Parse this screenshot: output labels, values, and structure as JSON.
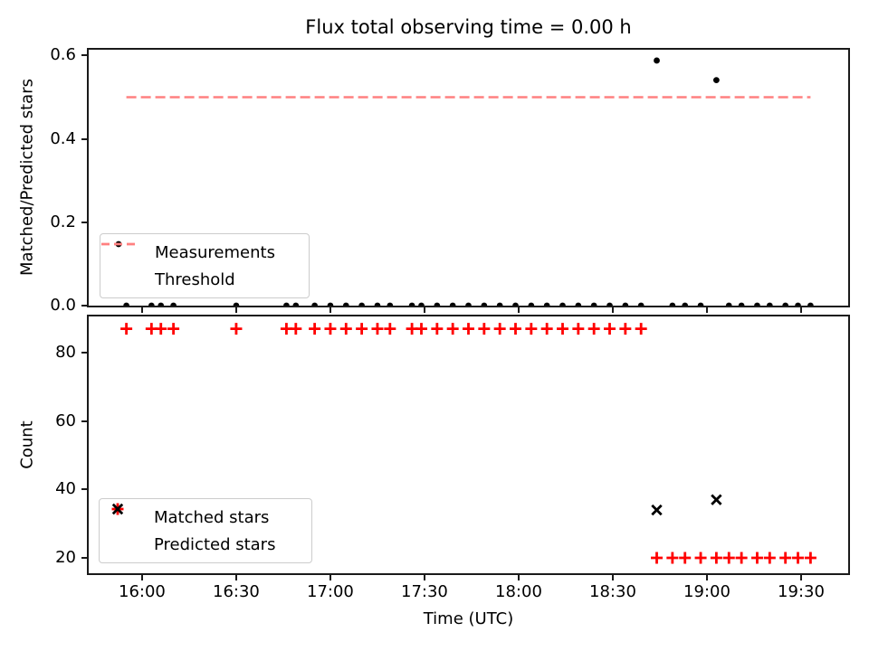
{
  "figure": {
    "title": "Flux total observing time = 0.00 h",
    "background_color": "#ffffff"
  },
  "colors": {
    "measurements": "#000000",
    "threshold": "#ff8080",
    "matched_stars": "#ff0000",
    "predicted_stars": "#000000",
    "axis": "#1a1a1a"
  },
  "chart_data": [
    {
      "type": "scatter",
      "title": "Flux total observing time = 0.00 h",
      "ylabel": "Matched/Predicted stars",
      "ylim": [
        0,
        0.6139
      ],
      "yticks": [
        0,
        0.2,
        0.4,
        0.6
      ],
      "ytick_labels": [
        "0.0",
        "0.2",
        "0.4",
        "0.6"
      ],
      "grid": false,
      "legend_position": "lower left",
      "x_axis": {
        "xlim_minutes_after_1600": [
          -17,
          225
        ],
        "tick_minutes": [
          0,
          30,
          60,
          90,
          120,
          150,
          180,
          210
        ],
        "tick_labels": [
          "16:00",
          "16:30",
          "17:00",
          "17:30",
          "18:00",
          "18:30",
          "19:00",
          "19:30"
        ],
        "show_tick_labels": false
      },
      "series": [
        {
          "name": "Measurements",
          "marker": "dot",
          "color": "#000000",
          "x_minutes": [
            -5,
            3,
            6,
            10,
            30,
            46,
            49,
            55,
            60,
            65,
            70,
            75,
            79,
            86,
            89,
            94,
            99,
            104,
            109,
            114,
            119,
            124,
            129,
            134,
            139,
            144,
            149,
            154,
            159,
            164,
            169,
            173,
            178,
            183,
            187,
            191,
            196,
            200,
            205,
            209,
            213
          ],
          "y": [
            0,
            0,
            0,
            0,
            0,
            0,
            0,
            0,
            0,
            0,
            0,
            0,
            0,
            0,
            0,
            0,
            0,
            0,
            0,
            0,
            0,
            0,
            0,
            0,
            0,
            0,
            0,
            0,
            0,
            0.588,
            0,
            0,
            0,
            0.541,
            0,
            0,
            0,
            0,
            0,
            0,
            0
          ]
        },
        {
          "name": "Threshold",
          "marker": "dashed-line",
          "color": "#ff8080",
          "y_value": 0.5,
          "x_span_minutes": [
            -5,
            213
          ]
        }
      ]
    },
    {
      "type": "scatter",
      "ylabel": "Count",
      "xlabel": "Time (UTC)",
      "ylim": [
        15.5,
        90.6
      ],
      "yticks": [
        20,
        40,
        60,
        80
      ],
      "ytick_labels": [
        "20",
        "40",
        "60",
        "80"
      ],
      "grid": false,
      "legend_position": "lower left",
      "x_axis": {
        "xlim_minutes_after_1600": [
          -17,
          225
        ],
        "tick_minutes": [
          0,
          30,
          60,
          90,
          120,
          150,
          180,
          210
        ],
        "tick_labels": [
          "16:00",
          "16:30",
          "17:00",
          "17:30",
          "18:00",
          "18:30",
          "19:00",
          "19:30"
        ],
        "show_tick_labels": true
      },
      "series": [
        {
          "name": "Matched stars",
          "marker": "plus",
          "color": "#ff0000",
          "x_minutes": [
            -5,
            3,
            6,
            10,
            30,
            46,
            49,
            55,
            60,
            65,
            70,
            75,
            79,
            86,
            89,
            94,
            99,
            104,
            109,
            114,
            119,
            124,
            129,
            134,
            139,
            144,
            149,
            154,
            159,
            164,
            169,
            173,
            178,
            183,
            187,
            191,
            196,
            200,
            205,
            209,
            213
          ],
          "y": [
            87,
            87,
            87,
            87,
            87,
            87,
            87,
            87,
            87,
            87,
            87,
            87,
            87,
            87,
            87,
            87,
            87,
            87,
            87,
            87,
            87,
            87,
            87,
            87,
            87,
            87,
            87,
            87,
            87,
            20,
            20,
            20,
            20,
            20,
            20,
            20,
            20,
            20,
            20,
            20,
            20
          ]
        },
        {
          "name": "Predicted stars",
          "marker": "x",
          "color": "#000000",
          "x_minutes": [
            164,
            183
          ],
          "y": [
            34,
            37
          ]
        }
      ]
    }
  ]
}
